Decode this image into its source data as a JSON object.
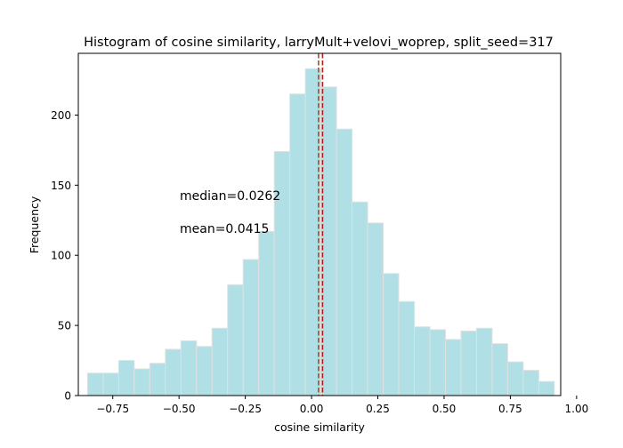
{
  "chart_data": {
    "type": "bar",
    "title": "Histogram of cosine similarity, larryMult+velovi_woprep, split_seed=317",
    "xlabel": "cosine similarity",
    "ylabel": "Frequency",
    "xlim": [
      -0.88,
      0.94
    ],
    "ylim": [
      0,
      244
    ],
    "xticks": [
      -0.75,
      -0.5,
      -0.25,
      0.0,
      0.25,
      0.5,
      0.75,
      1.0
    ],
    "xtick_labels": [
      "−0.75",
      "−0.50",
      "−0.25",
      "0.00",
      "0.25",
      "0.50",
      "0.75",
      "1.00"
    ],
    "yticks": [
      0,
      50,
      100,
      150,
      200
    ],
    "ytick_labels": [
      "0",
      "50",
      "100",
      "150",
      "200"
    ],
    "bin_start": -0.845,
    "bin_width": 0.0587,
    "values": [
      16,
      16,
      25,
      19,
      23,
      33,
      39,
      35,
      48,
      79,
      97,
      117,
      174,
      215,
      233,
      220,
      190,
      138,
      123,
      87,
      67,
      49,
      47,
      40,
      46,
      48,
      37,
      24,
      18,
      10
    ],
    "bar_color": "#b0dfe5",
    "bar_edge_color": "#e0e0e0",
    "grid": false,
    "median": {
      "value": 0.0262,
      "label": "median=0.0262",
      "color": "#a0522d"
    },
    "mean": {
      "value": 0.0415,
      "label": "mean=0.0415",
      "color": "#b22222"
    }
  }
}
